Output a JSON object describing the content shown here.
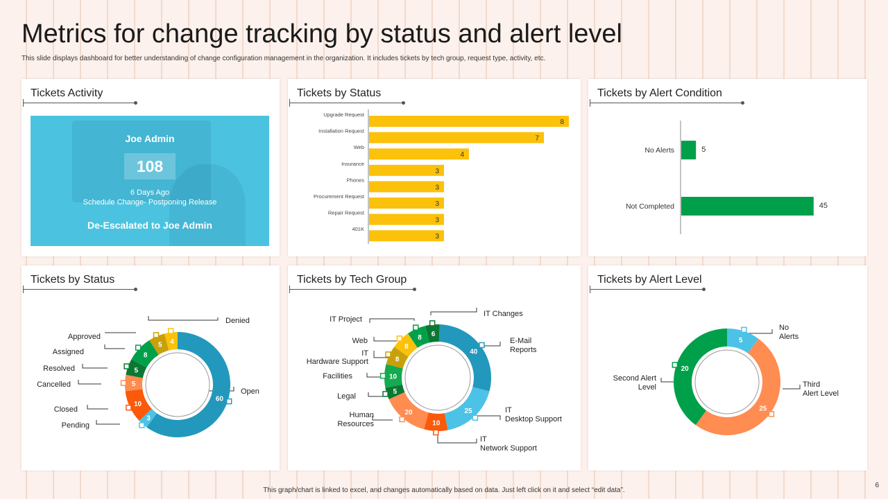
{
  "page": {
    "title": "Metrics for change tracking by status and alert level",
    "subtitle": "This slide displays dashboard for better understanding of change configuration management in the organization. It includes tickets by tech group, request type, activity, etc.",
    "footer": "This graph/chart is linked to excel, and changes automatically based on data. Just left click on it and select “edit data”.",
    "page_number": "6"
  },
  "activity": {
    "title": "Tickets Activity",
    "name": "Joe Admin",
    "count": "108",
    "when": "6 Days Ago",
    "action": "Schedule Change- Postponing Release",
    "status": "De-Escalated to Joe Admin"
  },
  "titles": {
    "status_bar": "Tickets by Status",
    "alert_condition": "Tickets by Alert Condition",
    "status_donut": "Tickets by Status",
    "tech_group": "Tickets by Tech Group",
    "alert_level": "Tickets by Alert Level"
  },
  "colors": {
    "bar_yellow": "#fcc10a",
    "green": "#00a04a",
    "blue": "#2398bd",
    "light_blue": "#4cc2e6",
    "orange": "#ff8c50",
    "dark_orange": "#fa5a0a",
    "dark_green": "#0a7832",
    "mid_green": "#14aa50",
    "yellow": "#fcc10a",
    "olive": "#c8a00a"
  },
  "chart_data": [
    {
      "type": "bar",
      "orientation": "horizontal",
      "title": "Tickets by Status",
      "categories": [
        "Upgrade Request",
        "Installation Request",
        "Web",
        "Insurance",
        "Phones",
        "Procurement Request",
        "Repair Request",
        "401K"
      ],
      "values": [
        8,
        7,
        4,
        3,
        3,
        3,
        3,
        3
      ],
      "xlim": [
        0,
        8
      ]
    },
    {
      "type": "bar",
      "orientation": "horizontal",
      "title": "Tickets by Alert Condition",
      "categories": [
        "No Alerts",
        "Not Completed"
      ],
      "values": [
        5,
        45
      ],
      "xlim": [
        0,
        50
      ]
    },
    {
      "type": "pie",
      "donut": true,
      "title": "Tickets by Status",
      "slices": [
        {
          "label": "Open",
          "value": 60,
          "color": "#2398bd"
        },
        {
          "label": "Pending",
          "value": 3,
          "color": "#4cc2e6"
        },
        {
          "label": "Closed",
          "value": 10,
          "color": "#fa5a0a"
        },
        {
          "label": "Cancelled",
          "value": 5,
          "color": "#ff8c50"
        },
        {
          "label": "Resolved",
          "value": 5,
          "color": "#0a7832"
        },
        {
          "label": "Assigned",
          "value": 8,
          "color": "#00a04a"
        },
        {
          "label": "Approved",
          "value": 5,
          "color": "#c8a00a"
        },
        {
          "label": "Denied",
          "value": 4,
          "color": "#fcc10a"
        }
      ]
    },
    {
      "type": "pie",
      "donut": true,
      "title": "Tickets by Tech Group",
      "slices": [
        {
          "label": "E-Mail Reports",
          "value": 40,
          "color": "#2398bd"
        },
        {
          "label": "IT Desktop Support",
          "value": 25,
          "color": "#4cc2e6"
        },
        {
          "label": "IT Network Support",
          "value": 10,
          "color": "#fa5a0a"
        },
        {
          "label": "Human Resources",
          "value": 20,
          "color": "#ff8c50"
        },
        {
          "label": "Legal",
          "value": 5,
          "color": "#0a7832"
        },
        {
          "label": "Facilities",
          "value": 10,
          "color": "#14aa50"
        },
        {
          "label": "IT Hardware Support",
          "value": 8,
          "color": "#c8a00a"
        },
        {
          "label": "Web",
          "value": 8,
          "color": "#fcc10a"
        },
        {
          "label": "IT Project",
          "value": 8,
          "color": "#00a04a"
        },
        {
          "label": "IT Changes",
          "value": 6,
          "color": "#0a7832"
        }
      ]
    },
    {
      "type": "pie",
      "donut": true,
      "title": "Tickets by Alert Level",
      "slices": [
        {
          "label": "No Alerts",
          "value": 5,
          "color": "#4cc2e6"
        },
        {
          "label": "Third Alert Level",
          "value": 25,
          "color": "#ff8c50"
        },
        {
          "label": "Second Alert Level",
          "value": 20,
          "color": "#00a04a"
        }
      ]
    }
  ],
  "callouts": {
    "status": {
      "open": "Open",
      "pending": "Pending",
      "closed": "Closed",
      "cancelled": "Cancelled",
      "resolved": "Resolved",
      "assigned": "Assigned",
      "approved": "Approved",
      "denied": "Denied"
    },
    "tech": {
      "email_1": "E-Mail",
      "email_2": "Reports",
      "desktop_1": "IT",
      "desktop_2": "Desktop Support",
      "network_1": "IT",
      "network_2": "Network Support",
      "hr_1": "Human",
      "hr_2": "Resources",
      "legal": "Legal",
      "facilities": "Facilities",
      "hardware_1": "IT",
      "hardware_2": "Hardware Support",
      "web": "Web",
      "project": "IT Project",
      "changes": "IT Changes"
    },
    "alert": {
      "no_1": "No",
      "no_2": "Alerts",
      "third_1": "Third",
      "third_2": "Alert Level",
      "second_1": "Second Alert",
      "second_2": "Level"
    }
  }
}
